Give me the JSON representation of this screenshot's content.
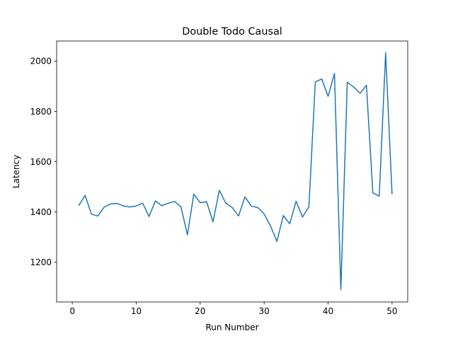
{
  "chart_data": {
    "type": "line",
    "title": "Double Todo Causal",
    "xlabel": "Run Number",
    "ylabel": "Latency",
    "xlim": [
      -2.45,
      52.45
    ],
    "ylim": [
      1042,
      2080
    ],
    "xticks": [
      0,
      10,
      20,
      30,
      40,
      50
    ],
    "yticks": [
      1200,
      1400,
      1600,
      1800,
      2000
    ],
    "grid": false,
    "line_color": "#1f77b4",
    "series": [
      {
        "x": [
          1,
          2,
          3,
          4,
          5,
          6,
          7,
          8,
          9,
          10,
          11,
          12,
          13,
          14,
          15,
          16,
          17,
          18,
          19,
          20,
          21,
          22,
          23,
          24,
          25,
          26,
          27,
          28,
          29,
          30,
          31,
          32,
          33,
          34,
          35,
          36,
          37,
          38,
          39,
          40,
          41,
          42,
          43,
          44,
          45,
          46,
          47,
          48,
          49,
          50
        ],
        "values": [
          1425,
          1466,
          1391,
          1384,
          1420,
          1432,
          1434,
          1424,
          1420,
          1424,
          1435,
          1382,
          1444,
          1425,
          1435,
          1442,
          1420,
          1309,
          1471,
          1437,
          1441,
          1361,
          1486,
          1435,
          1418,
          1384,
          1460,
          1423,
          1418,
          1392,
          1344,
          1283,
          1386,
          1353,
          1443,
          1380,
          1420,
          1917,
          1929,
          1860,
          1951,
          1091,
          1916,
          1897,
          1872,
          1904,
          1476,
          1463,
          2033,
          1471
        ]
      }
    ]
  }
}
